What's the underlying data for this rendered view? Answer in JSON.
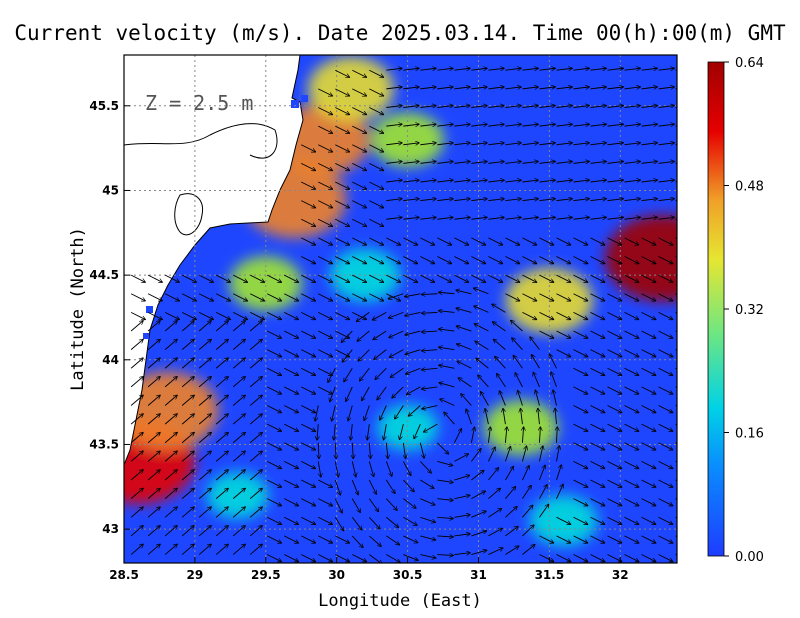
{
  "chart_data": {
    "type": "heatmap",
    "title": "Current velocity (m/s). Date 2025.03.14. Time 00(h):00(m) GMT",
    "xlabel": "Longitude (East)",
    "ylabel": "Latitude (North)",
    "xlim": [
      28.5,
      32.4
    ],
    "ylim": [
      42.8,
      45.8
    ],
    "x_ticks": [
      "28.5",
      "29",
      "29.5",
      "30",
      "30.5",
      "31",
      "31.5",
      "32"
    ],
    "x_tick_values": [
      28.5,
      29,
      29.5,
      30,
      30.5,
      31,
      31.5,
      32
    ],
    "y_ticks": [
      "43",
      "43.5",
      "44",
      "44.5",
      "45",
      "45.5"
    ],
    "y_tick_values": [
      43,
      43.5,
      44,
      44.5,
      45,
      45.5
    ],
    "depth_label": "Z = 2.5 m",
    "colorbar": {
      "ticks": [
        "0.00",
        "0.16",
        "0.32",
        "0.48",
        "0.64"
      ],
      "tick_values": [
        0.0,
        0.16,
        0.32,
        0.48,
        0.64
      ],
      "range": [
        0.0,
        0.64
      ],
      "colors": [
        "#1e3cff",
        "#00a0ff",
        "#00dcdc",
        "#a0e632",
        "#e6dc32",
        "#f08228",
        "#e60000",
        "#a00000"
      ]
    },
    "grid": true,
    "vector_field": true,
    "regions": [
      {
        "lon": 28.6,
        "lat": 43.4,
        "speed": 0.58
      },
      {
        "lon": 28.8,
        "lat": 43.7,
        "speed": 0.5
      },
      {
        "lon": 29.7,
        "lat": 44.95,
        "speed": 0.5
      },
      {
        "lon": 29.9,
        "lat": 45.3,
        "speed": 0.42
      },
      {
        "lon": 30.1,
        "lat": 45.6,
        "speed": 0.35
      },
      {
        "lon": 32.3,
        "lat": 44.6,
        "speed": 0.6
      },
      {
        "lon": 31.5,
        "lat": 44.35,
        "speed": 0.36
      },
      {
        "lon": 31.3,
        "lat": 43.6,
        "speed": 0.25
      },
      {
        "lon": 30.5,
        "lat": 45.3,
        "speed": 0.24
      },
      {
        "lon": 29.5,
        "lat": 44.45,
        "speed": 0.24
      },
      {
        "lon": 30.2,
        "lat": 44.5,
        "speed": 0.22
      },
      {
        "lon": 30.5,
        "lat": 43.6,
        "speed": 0.14
      },
      {
        "lon": 31.6,
        "lat": 43.05,
        "speed": 0.2
      },
      {
        "lon": 29.3,
        "lat": 43.2,
        "speed": 0.15
      }
    ]
  }
}
